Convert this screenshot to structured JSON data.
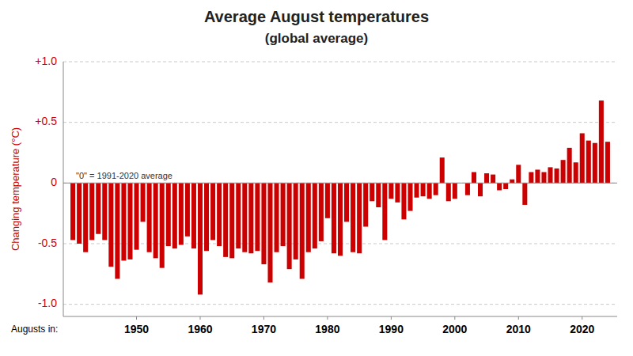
{
  "chart_data": {
    "type": "bar",
    "title": "Average August temperatures",
    "subtitle": "(global average)",
    "ylabel": "Changing temperature (°C)",
    "xlabel": "Augusts in:",
    "annotation": "\"0\" = 1991-2020 average",
    "color": "#cc0000",
    "grid": true,
    "xlim": [
      1938.5,
      2025.5
    ],
    "xticks": [
      1950,
      1960,
      1970,
      1980,
      1990,
      2000,
      2010,
      2020
    ],
    "ylim": [
      -1.1,
      1.0
    ],
    "yticks": [
      {
        "value": -1.0,
        "label": "-1.0"
      },
      -0.5,
      0,
      {
        "value": 0.5,
        "label": "+0.5"
      },
      {
        "value": 1.0,
        "label": "+1.0"
      }
    ],
    "x": [
      1940,
      1941,
      1942,
      1943,
      1944,
      1945,
      1946,
      1947,
      1948,
      1949,
      1950,
      1951,
      1952,
      1953,
      1954,
      1955,
      1956,
      1957,
      1958,
      1959,
      1960,
      1961,
      1962,
      1963,
      1964,
      1965,
      1966,
      1967,
      1968,
      1969,
      1970,
      1971,
      1972,
      1973,
      1974,
      1975,
      1976,
      1977,
      1978,
      1979,
      1980,
      1981,
      1982,
      1983,
      1984,
      1985,
      1986,
      1987,
      1988,
      1989,
      1990,
      1991,
      1992,
      1993,
      1994,
      1995,
      1996,
      1997,
      1998,
      1999,
      2000,
      2001,
      2002,
      2003,
      2004,
      2005,
      2006,
      2007,
      2008,
      2009,
      2010,
      2011,
      2012,
      2013,
      2014,
      2015,
      2016,
      2017,
      2018,
      2019,
      2020,
      2021,
      2022,
      2023,
      2024
    ],
    "values": [
      -0.47,
      -0.5,
      -0.57,
      -0.47,
      -0.42,
      -0.47,
      -0.69,
      -0.79,
      -0.64,
      -0.63,
      -0.55,
      -0.32,
      -0.57,
      -0.62,
      -0.7,
      -0.52,
      -0.54,
      -0.51,
      -0.44,
      -0.54,
      -0.92,
      -0.56,
      -0.47,
      -0.52,
      -0.61,
      -0.62,
      -0.54,
      -0.57,
      -0.58,
      -0.56,
      -0.67,
      -0.82,
      -0.57,
      -0.52,
      -0.71,
      -0.63,
      -0.79,
      -0.57,
      -0.54,
      -0.48,
      -0.29,
      -0.58,
      -0.6,
      -0.32,
      -0.57,
      -0.58,
      -0.36,
      -0.15,
      -0.2,
      -0.47,
      -0.13,
      -0.16,
      -0.3,
      -0.23,
      -0.12,
      -0.11,
      -0.13,
      -0.1,
      0.21,
      -0.15,
      -0.13,
      0.0,
      -0.1,
      0.09,
      -0.11,
      0.08,
      0.07,
      -0.06,
      -0.05,
      0.03,
      0.15,
      -0.18,
      0.09,
      0.11,
      0.09,
      0.13,
      0.12,
      0.19,
      0.29,
      0.17,
      0.41,
      0.35,
      0.33,
      0.68,
      0.34
    ]
  }
}
